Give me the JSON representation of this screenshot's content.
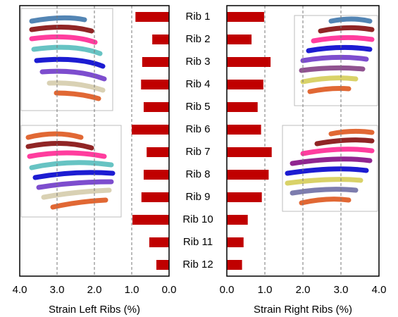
{
  "chart_data": {
    "type": "bar",
    "categories": [
      "Rib 1",
      "Rib 2",
      "Rib 3",
      "Rib 4",
      "Rib 5",
      "Rib 6",
      "Rib 7",
      "Rib 8",
      "Rib 9",
      "Rib 10",
      "Rib 11",
      "Rib 12"
    ],
    "series": [
      {
        "side": "left",
        "color": "#c00000",
        "xlabel": "Strain Left Ribs (%)",
        "values": [
          0.9,
          0.45,
          0.72,
          0.75,
          0.68,
          1.0,
          0.6,
          0.68,
          0.74,
          0.98,
          0.53,
          0.34
        ],
        "xlim": [
          4,
          0
        ],
        "xticks": [
          {
            "value": 4,
            "label": "4.0"
          },
          {
            "value": 3,
            "label": "3.0"
          },
          {
            "value": 2,
            "label": "2.0"
          },
          {
            "value": 1,
            "label": "1.0"
          },
          {
            "value": 0,
            "label": "0.0"
          }
        ]
      },
      {
        "side": "right",
        "color": "#c00000",
        "xlabel": "Strain Right Ribs (%)",
        "values": [
          0.98,
          0.65,
          1.15,
          0.96,
          0.81,
          0.9,
          1.18,
          1.1,
          0.92,
          0.55,
          0.44,
          0.4
        ],
        "xlim": [
          0,
          4
        ],
        "xticks": [
          {
            "value": 0,
            "label": "0.0"
          },
          {
            "value": 1,
            "label": "1.0"
          },
          {
            "value": 2,
            "label": "2.0"
          },
          {
            "value": 3,
            "label": "3.0"
          },
          {
            "value": 4,
            "label": "4.0"
          }
        ]
      }
    ],
    "grid": true
  }
}
